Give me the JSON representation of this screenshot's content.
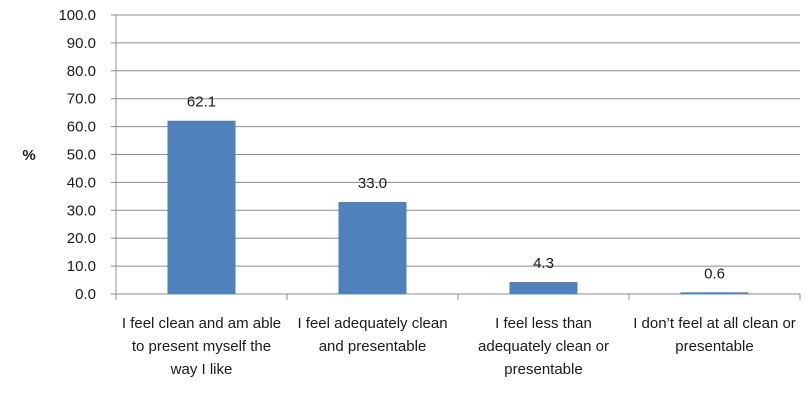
{
  "chart_data": {
    "type": "bar",
    "categories": [
      "I feel clean and am able to present myself the way I like",
      "I feel adequately clean and presentable",
      "I feel less than adequately clean or presentable",
      "I don’t feel at all clean or presentable"
    ],
    "values": [
      62.1,
      33.0,
      4.3,
      0.6
    ],
    "data_labels": [
      "62.1",
      "33.0",
      "4.3",
      "0.6"
    ],
    "title": "",
    "xlabel": "",
    "ylabel": "%",
    "ylim": [
      0,
      100
    ],
    "yticks": [
      "0.0",
      "10.0",
      "20.0",
      "30.0",
      "40.0",
      "50.0",
      "60.0",
      "70.0",
      "80.0",
      "90.0",
      "100.0"
    ],
    "grid": "horizontal major gridlines",
    "legend": "none",
    "bar_color": "#4f81bd",
    "grid_color": "#8c8c8c",
    "axis_color": "#8c8c8c"
  }
}
